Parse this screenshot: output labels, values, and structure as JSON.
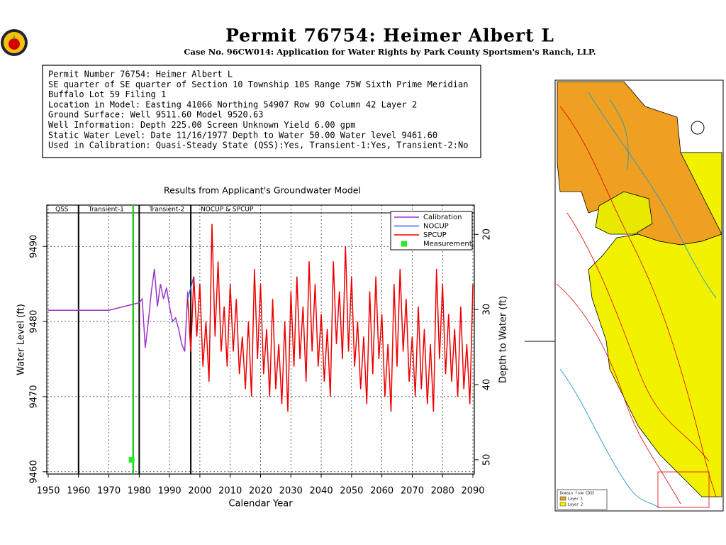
{
  "header": {
    "title": "Permit 76754:  Heimer Albert L",
    "subtitle": "Case No. 96CW014: Application for Water Rights by Park County Sportsmen's Ranch, LLP."
  },
  "info": [
    "Permit Number 76754: Heimer Albert L",
    "SE quarter of SE quarter of Section 10 Township 10S Range 75W Sixth Prime Meridian",
    "Buffalo Lot 59 Filing 1",
    "Location in Model: Easting 41066 Northing  54907 Row   90 Column 42 Layer 2",
    "Ground Surface: Well   9511.60 Model  9520.63",
    "Well Information: Depth    225.00 Screen Unknown Yield      6.00 gpm",
    "Static Water Level: Date 11/16/1977 Depth to Water    50.00 Water level  9461.60",
    "Used in Calibration: Quasi-Steady State (QSS):Yes, Transient-1:Yes, Transient-2:No"
  ],
  "map": {
    "legend": [
      "Domain from CDSS",
      "Layer 1",
      "Layer 2"
    ]
  },
  "chart_data": {
    "type": "line",
    "title": "Results from Applicant's Groundwater Model",
    "xlabel": "Calendar Year",
    "ylabel": "Water Level (ft)",
    "y2label": "Depth to Water (ft)",
    "xlim": [
      1950,
      2090
    ],
    "xticks": [
      1950,
      1960,
      1970,
      1980,
      1990,
      2000,
      2010,
      2020,
      2030,
      2040,
      2050,
      2060,
      2070,
      2080,
      2090
    ],
    "ylim": [
      9459.7,
      9495.5
    ],
    "yticks": [
      9460,
      9470,
      9480,
      9490
    ],
    "y2lim": [
      51.9,
      16.1
    ],
    "y2ticks": [
      20,
      30,
      40,
      50
    ],
    "grid": true,
    "legend": "upper right",
    "periods": [
      {
        "label": "QSS",
        "start": 1950,
        "end": 1960
      },
      {
        "label": "Transient-1",
        "start": 1960,
        "end": 1980
      },
      {
        "label": "Transient-2",
        "start": 1980,
        "end": 1997
      },
      {
        "label": "NOCUP & SPCUP",
        "start": 1997,
        "end": 2090
      }
    ],
    "vlines": [
      {
        "x": 1978,
        "color": "#22cc22"
      }
    ],
    "series": [
      {
        "name": "Calibration",
        "color": "#9933cc",
        "x": [
          1950,
          1970,
          1975,
          1980,
          1981,
          1982,
          1983,
          1984,
          1985,
          1986,
          1987,
          1988,
          1989,
          1990,
          1991,
          1992,
          1993,
          1994,
          1995,
          1996
        ],
        "values": [
          9481.5,
          9481.5,
          9482,
          9482.5,
          9483,
          9476.5,
          9480,
          9484,
          9487,
          9482,
          9485,
          9483,
          9484.5,
          9482,
          9480,
          9480.5,
          9479,
          9477,
          9476,
          9484
        ]
      },
      {
        "name": "NOCUP",
        "color": "#3366ff",
        "x": [
          1996,
          1998
        ],
        "values": [
          9483,
          9486
        ]
      },
      {
        "name": "SPCUP",
        "color": "#ee0000",
        "x": [
          1996,
          1997,
          1998,
          1999,
          2000,
          2001,
          2002,
          2003,
          2004,
          2005,
          2006,
          2007,
          2008,
          2009,
          2010,
          2011,
          2012,
          2013,
          2014,
          2015,
          2016,
          2017,
          2018,
          2019,
          2020,
          2021,
          2022,
          2023,
          2024,
          2025,
          2026,
          2027,
          2028,
          2029,
          2030,
          2031,
          2032,
          2033,
          2034,
          2035,
          2036,
          2037,
          2038,
          2039,
          2040,
          2041,
          2042,
          2043,
          2044,
          2045,
          2046,
          2047,
          2048,
          2049,
          2050,
          2051,
          2052,
          2053,
          2054,
          2055,
          2056,
          2057,
          2058,
          2059,
          2060,
          2061,
          2062,
          2063,
          2064,
          2065,
          2066,
          2067,
          2068,
          2069,
          2070,
          2071,
          2072,
          2073,
          2074,
          2075,
          2076,
          2077,
          2078,
          2079,
          2080,
          2081,
          2082,
          2083,
          2084,
          2085,
          2086,
          2087,
          2088,
          2089,
          2090
        ],
        "values": [
          9483,
          9476,
          9486,
          9478,
          9485,
          9474,
          9480,
          9472,
          9493,
          9478,
          9488,
          9476,
          9482,
          9474,
          9485,
          9476,
          9483,
          9473,
          9478,
          9471,
          9480,
          9470,
          9487,
          9475,
          9485,
          9473,
          9479,
          9470,
          9483,
          9471,
          9477,
          9469,
          9480,
          9468,
          9484,
          9474,
          9486,
          9475,
          9482,
          9472,
          9488,
          9476,
          9485,
          9474,
          9481,
          9472,
          9479,
          9470,
          9488,
          9477,
          9484,
          9475,
          9490,
          9476,
          9486,
          9474,
          9480,
          9471,
          9478,
          9469,
          9484,
          9473,
          9486,
          9475,
          9481,
          9470,
          9477,
          9468,
          9485,
          9474,
          9487,
          9476,
          9483,
          9472,
          9478,
          9470,
          9482,
          9471,
          9479,
          9469,
          9477,
          9468,
          9487,
          9475,
          9485,
          9473,
          9481,
          9472,
          9479,
          9470,
          9482,
          9471,
          9477,
          9469,
          9485
        ]
      },
      {
        "name": "Measurement",
        "color": "#22ee22",
        "marker": "square",
        "x": [
          1977.5
        ],
        "values": [
          9461.6
        ]
      }
    ]
  }
}
